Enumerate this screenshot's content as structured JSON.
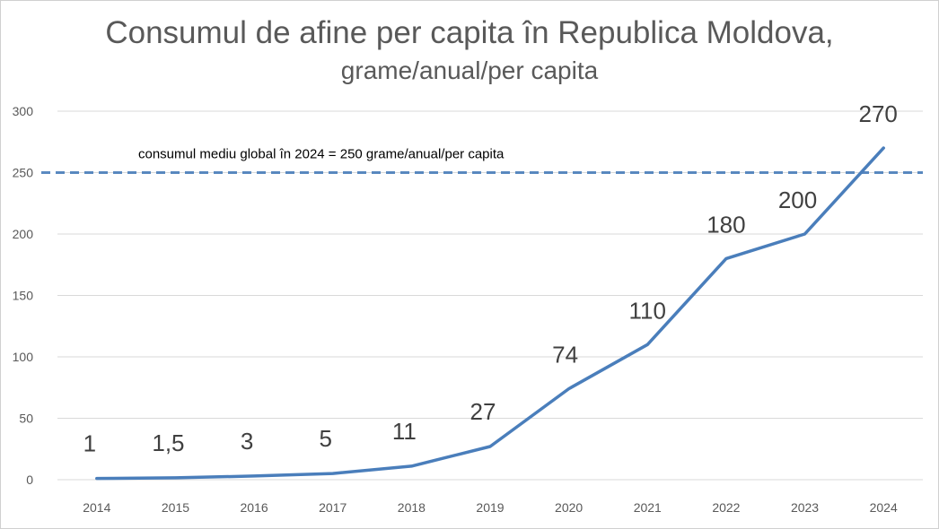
{
  "chart_data": {
    "type": "line",
    "title": "Consumul de afine per capita în Republica Moldova,",
    "subtitle": "grame/anual/per capita",
    "xlabel": "",
    "ylabel": "",
    "categories": [
      "2014",
      "2015",
      "2016",
      "2017",
      "2018",
      "2019",
      "2020",
      "2021",
      "2022",
      "2023",
      "2024"
    ],
    "series": [
      {
        "name": "Consumul de afine per capita",
        "values": [
          1,
          1.5,
          3,
          5,
          11,
          27,
          74,
          110,
          180,
          200,
          270
        ],
        "labels": [
          "1",
          "1,5",
          "3",
          "5",
          "11",
          "27",
          "74",
          "110",
          "180",
          "200",
          "270"
        ],
        "color": "#4a7ebb"
      }
    ],
    "reference_line": {
      "value": 250,
      "label": "consumul mediu global în 2024 = 250 grame/anual/per capita",
      "color": "#4a7ebb",
      "style": "dashed"
    },
    "ylim": [
      0,
      300
    ],
    "yticks": [
      0,
      50,
      100,
      150,
      200,
      250,
      300
    ],
    "grid": true,
    "legend": "none",
    "colors": {
      "grid": "#d9d9d9",
      "text": "#595959"
    }
  }
}
